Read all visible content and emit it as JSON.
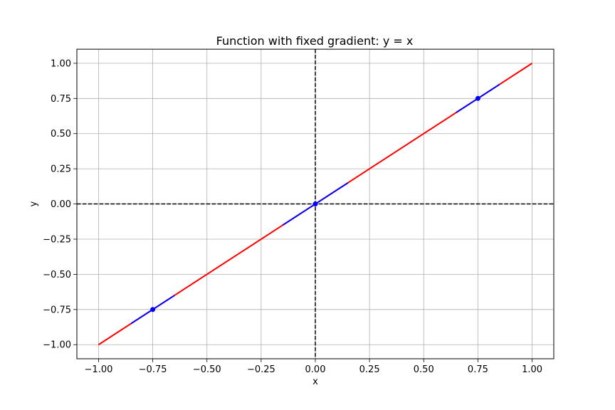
{
  "chart_data": {
    "type": "line",
    "title": "Function with fixed gradient: y = x",
    "xlabel": "x",
    "ylabel": "y",
    "xlim": [
      -1.1,
      1.1
    ],
    "ylim": [
      -1.1,
      1.1
    ],
    "grid": true,
    "x_ticks": [
      -1.0,
      -0.75,
      -0.5,
      -0.25,
      0.0,
      0.25,
      0.5,
      0.75,
      1.0
    ],
    "x_tick_labels": [
      "−1.00",
      "−0.75",
      "−0.50",
      "−0.25",
      "0.00",
      "0.25",
      "0.50",
      "0.75",
      "1.00"
    ],
    "y_ticks": [
      1.0,
      0.75,
      0.5,
      0.25,
      0.0,
      -0.25,
      -0.5,
      -0.75,
      -1.0
    ],
    "y_tick_labels": [
      "1.00",
      "0.75",
      "0.50",
      "0.25",
      "0.00",
      "−0.25",
      "−0.50",
      "−0.75",
      "−1.00"
    ],
    "series": [
      {
        "color": "#ff0000",
        "x": [
          -1.0,
          1.0
        ],
        "y": [
          -1.0,
          1.0
        ]
      }
    ],
    "tangent_segments": [
      {
        "color": "#0000ff",
        "x": [
          -0.85,
          -0.65
        ],
        "y": [
          -0.85,
          -0.65
        ]
      },
      {
        "color": "#0000ff",
        "x": [
          -0.15,
          0.15
        ],
        "y": [
          -0.15,
          0.15
        ]
      },
      {
        "color": "#0000ff",
        "x": [
          0.65,
          0.85
        ],
        "y": [
          0.65,
          0.85
        ]
      }
    ],
    "points": [
      {
        "color": "#0000ff",
        "x": -0.75,
        "y": -0.75
      },
      {
        "color": "#0000ff",
        "x": 0.0,
        "y": 0.0
      },
      {
        "color": "#0000ff",
        "x": 0.75,
        "y": 0.75
      }
    ],
    "reference_lines": [
      {
        "orientation": "horizontal",
        "value": 0.0,
        "color": "#000000",
        "style": "dashed"
      },
      {
        "orientation": "vertical",
        "value": 0.0,
        "color": "#000000",
        "style": "dashed"
      }
    ]
  }
}
